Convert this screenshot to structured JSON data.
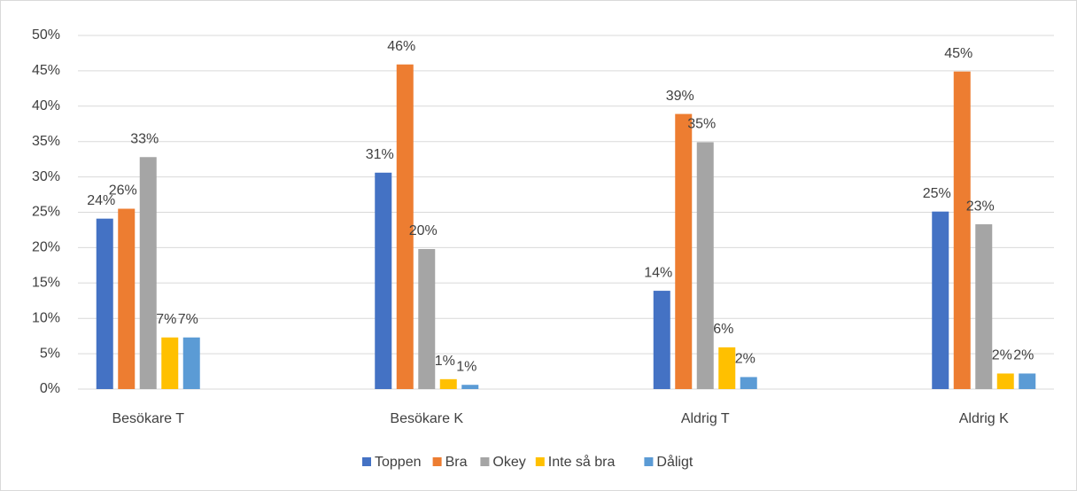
{
  "chart_data": {
    "type": "bar",
    "categories": [
      "Besökare T",
      "Besökare K",
      "Aldrig T",
      "Aldrig K"
    ],
    "series": [
      {
        "name": "Toppen",
        "color": "#4472c4",
        "values": [
          24.1,
          30.6,
          13.9,
          25.1
        ],
        "value_labels": [
          "24%",
          "31%",
          "14%",
          "25%"
        ]
      },
      {
        "name": "Bra",
        "color": "#ed7d31",
        "values": [
          25.5,
          45.9,
          38.9,
          44.9
        ],
        "value_labels": [
          "26%",
          "46%",
          "39%",
          "45%"
        ]
      },
      {
        "name": "Okey",
        "color": "#a5a5a5",
        "values": [
          32.8,
          19.8,
          34.9,
          23.3
        ],
        "value_labels": [
          "33%",
          "20%",
          "35%",
          "23%"
        ]
      },
      {
        "name": "Inte så bra",
        "color": "#ffc000",
        "values": [
          7.3,
          1.4,
          5.9,
          2.2
        ],
        "value_labels": [
          "7%",
          "1%",
          "6%",
          "2%"
        ]
      },
      {
        "name": "Dåligt",
        "color": "#5b9bd5",
        "values": [
          7.3,
          0.6,
          1.7,
          2.2
        ],
        "value_labels": [
          "7%",
          "1%",
          "2%",
          "2%"
        ]
      }
    ],
    "ylim": [
      0,
      50
    ],
    "yticks": [
      {
        "value": 0,
        "label": "0%"
      },
      {
        "value": 5,
        "label": "5%"
      },
      {
        "value": 10,
        "label": "10%"
      },
      {
        "value": 15,
        "label": "15%"
      },
      {
        "value": 20,
        "label": "20%"
      },
      {
        "value": 25,
        "label": "25%"
      },
      {
        "value": 30,
        "label": "30%"
      },
      {
        "value": 35,
        "label": "35%"
      },
      {
        "value": 40,
        "label": "40%"
      },
      {
        "value": 45,
        "label": "45%"
      },
      {
        "value": 50,
        "label": "50%"
      }
    ],
    "grid": true,
    "legend": "bottom"
  }
}
